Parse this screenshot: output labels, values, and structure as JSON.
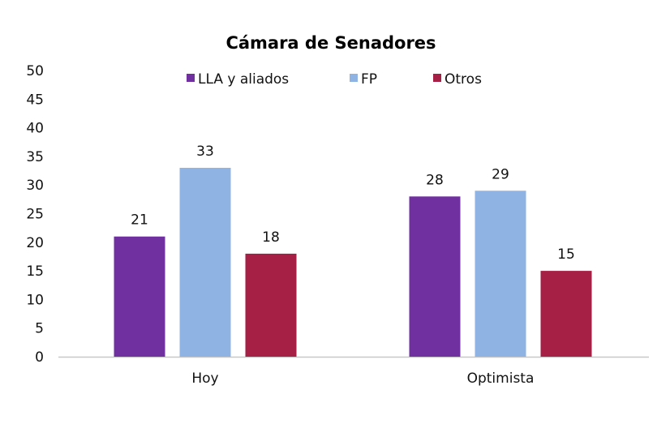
{
  "chart_data": {
    "type": "bar",
    "title": "Cámara de Senadores",
    "categories": [
      "Hoy",
      "Optimista"
    ],
    "series": [
      {
        "name": "LLA y aliados",
        "color": "#7030A0",
        "values": [
          21,
          28
        ]
      },
      {
        "name": "FP",
        "color": "#8FB4E3",
        "values": [
          33,
          29
        ]
      },
      {
        "name": "Otros",
        "color": "#A61F44",
        "values": [
          18,
          15
        ]
      }
    ],
    "yticks": [
      "0",
      "5",
      "10",
      "15",
      "20",
      "25",
      "30",
      "35",
      "40",
      "45",
      "50"
    ],
    "ylim": [
      0,
      50
    ],
    "xlabel": "",
    "ylabel": "",
    "grid": false,
    "legend_position": "top"
  }
}
